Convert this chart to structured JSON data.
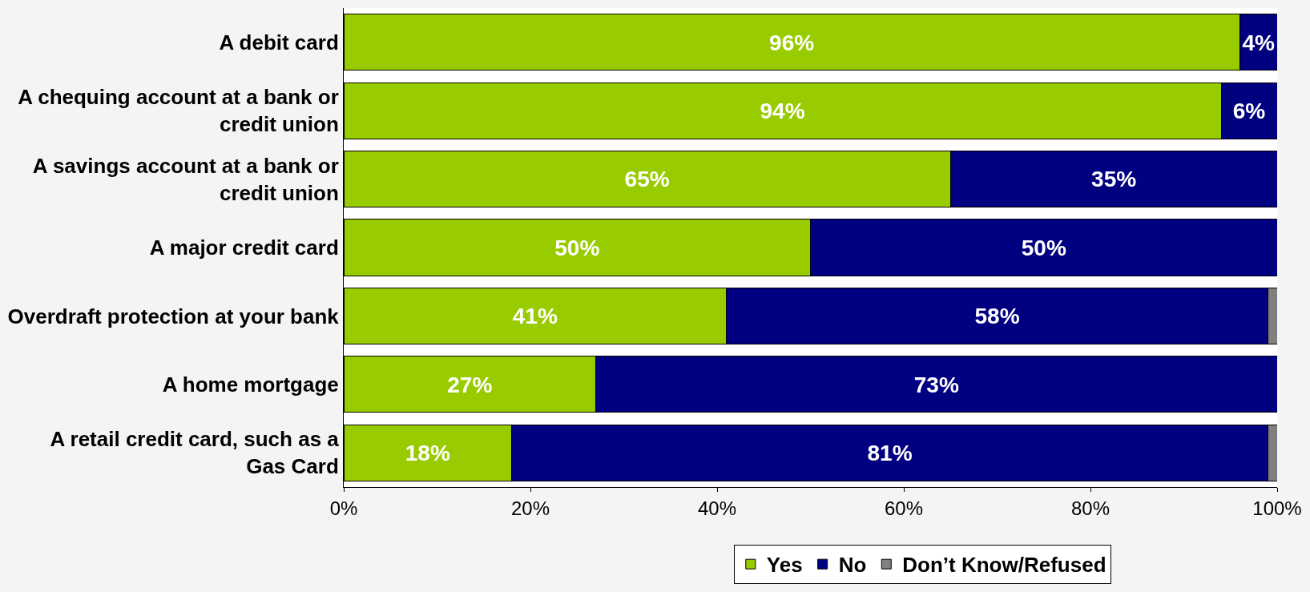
{
  "chart_data": {
    "type": "bar",
    "orientation": "horizontal",
    "stacked": true,
    "categories": [
      "A debit card",
      "A chequing account at a bank or credit union",
      "A savings account at a bank or credit union",
      "A major credit card",
      "Overdraft protection at your bank",
      "A home mortgage",
      "A retail credit card, such as a Gas Card"
    ],
    "series": [
      {
        "name": "Yes",
        "color": "#99cc00",
        "values": [
          96,
          94,
          65,
          50,
          41,
          27,
          18
        ],
        "value_labels": [
          "96%",
          "94%",
          "65%",
          "50%",
          "41%",
          "27%",
          "18%"
        ]
      },
      {
        "name": "No",
        "color": "#000080",
        "values": [
          4,
          6,
          35,
          50,
          58,
          73,
          81
        ],
        "value_labels": [
          "4%",
          "6%",
          "35%",
          "50%",
          "58%",
          "73%",
          "81%"
        ]
      },
      {
        "name": "Don’t Know/Refused",
        "color": "#808080",
        "values": [
          null,
          null,
          null,
          null,
          1,
          null,
          1
        ]
      }
    ],
    "xlim": [
      0,
      100
    ],
    "xticks": [
      {
        "value": 0,
        "label": "0%"
      },
      {
        "value": 20,
        "label": "20%"
      },
      {
        "value": 40,
        "label": "40%"
      },
      {
        "value": 60,
        "label": "60%"
      },
      {
        "value": 80,
        "label": "80%"
      },
      {
        "value": 100,
        "label": "100%"
      }
    ],
    "legend": "bottom"
  }
}
